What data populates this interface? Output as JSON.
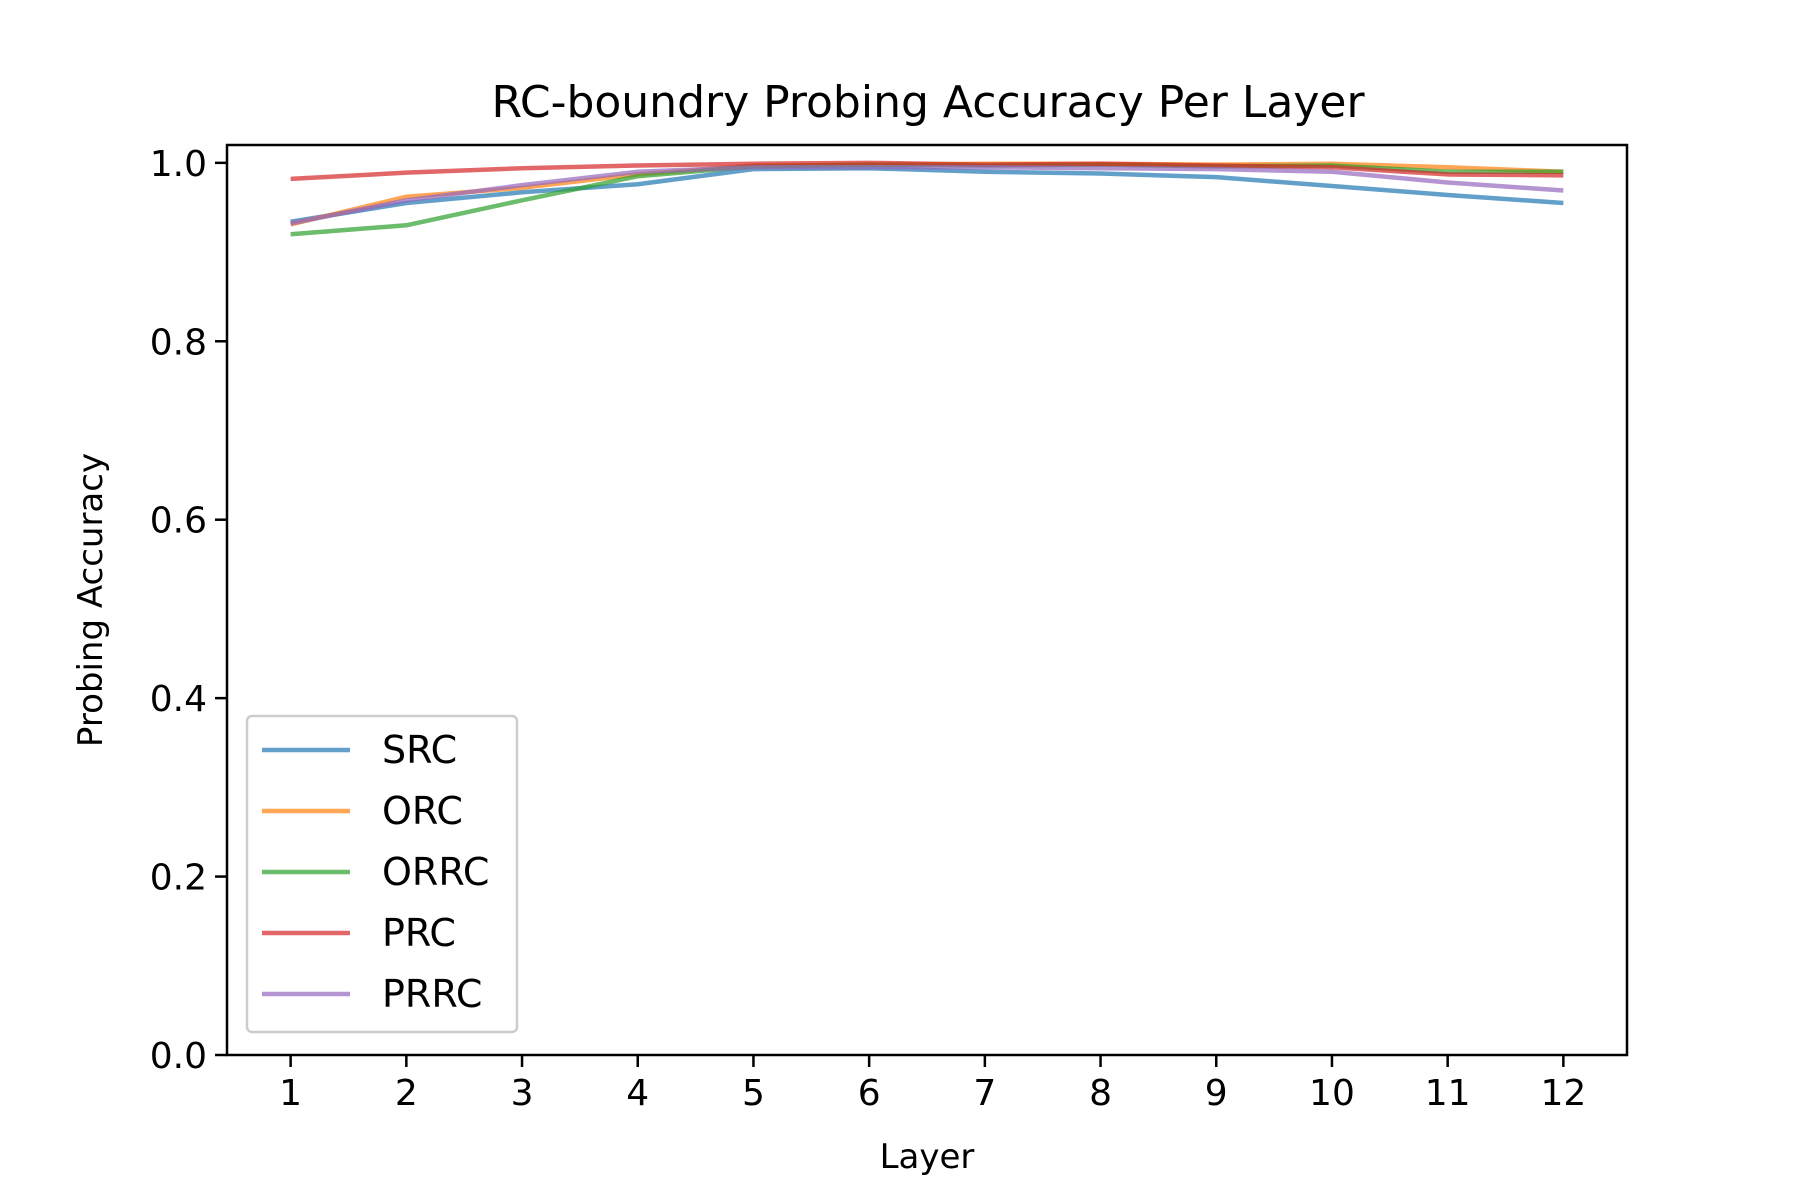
{
  "chart_data": {
    "type": "line",
    "title": "RC-boundry Probing Accuracy Per Layer",
    "xlabel": "Layer",
    "ylabel": "Probing Accuracy",
    "x": [
      1,
      2,
      3,
      4,
      5,
      6,
      7,
      8,
      9,
      10,
      11,
      12
    ],
    "xticks": [
      "1",
      "2",
      "3",
      "4",
      "5",
      "6",
      "7",
      "8",
      "9",
      "10",
      "11",
      "12"
    ],
    "xlim": [
      0.45,
      12.55
    ],
    "ylim": [
      0.0,
      1.02
    ],
    "yticks": [
      "0.0",
      "0.2",
      "0.4",
      "0.6",
      "0.8",
      "1.0"
    ],
    "ytick_values": [
      0.0,
      0.2,
      0.4,
      0.6,
      0.8,
      1.0
    ],
    "grid": false,
    "legend_position": "lower-left",
    "series": [
      {
        "name": "SRC",
        "color": "#1f77b4",
        "values": [
          0.934,
          0.955,
          0.967,
          0.976,
          0.993,
          0.994,
          0.99,
          0.988,
          0.984,
          0.974,
          0.964,
          0.955
        ]
      },
      {
        "name": "ORC",
        "color": "#ff7f0e",
        "values": [
          0.931,
          0.962,
          0.972,
          0.987,
          0.997,
          0.998,
          0.999,
          0.999,
          0.998,
          0.999,
          0.995,
          0.99
        ]
      },
      {
        "name": "ORRC",
        "color": "#2ca02c",
        "values": [
          0.92,
          0.93,
          0.958,
          0.985,
          0.996,
          0.998,
          0.997,
          0.998,
          0.996,
          0.997,
          0.99,
          0.99
        ]
      },
      {
        "name": "PRC",
        "color": "#d62728",
        "values": [
          0.982,
          0.989,
          0.994,
          0.997,
          0.999,
          1.0,
          0.998,
          0.999,
          0.997,
          0.995,
          0.987,
          0.986
        ]
      },
      {
        "name": "PRRC",
        "color": "#9467bd",
        "values": [
          0.932,
          0.958,
          0.975,
          0.99,
          0.995,
          0.995,
          0.995,
          0.994,
          0.993,
          0.99,
          0.978,
          0.969
        ]
      }
    ]
  }
}
